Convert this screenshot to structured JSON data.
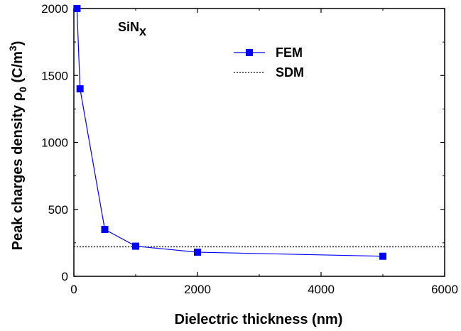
{
  "chart_data": {
    "type": "line",
    "title": "",
    "xlabel": "Dielectric thickness (nm)",
    "ylabel": {
      "prefix": "Peak charges density ",
      "symbol": "ρ",
      "subscript": "0",
      "unit_open": " (C/m",
      "superscript": "3",
      "unit_close": ")"
    },
    "annotation": {
      "main": "SiN",
      "subscript": "x"
    },
    "xlim": [
      0,
      6000
    ],
    "ylim": [
      0,
      2000
    ],
    "xticks": [
      0,
      2000,
      4000,
      6000
    ],
    "yticks": [
      0,
      500,
      1000,
      1500,
      2000
    ],
    "xtick_labels": [
      "0",
      "2000",
      "4000",
      "6000"
    ],
    "ytick_labels": [
      "0",
      "500",
      "1000",
      "1500",
      "2000"
    ],
    "series": [
      {
        "name": "FEM",
        "style": "line-square-markers",
        "color": "#0000ff",
        "x": [
          50,
          100,
          500,
          1000,
          2000,
          5000
        ],
        "y": [
          2000,
          1400,
          350,
          225,
          180,
          150
        ]
      },
      {
        "name": "SDM",
        "style": "dotted",
        "color": "#000000",
        "y_constant": 220
      }
    ],
    "legend_position": "top-right",
    "grid": false
  }
}
